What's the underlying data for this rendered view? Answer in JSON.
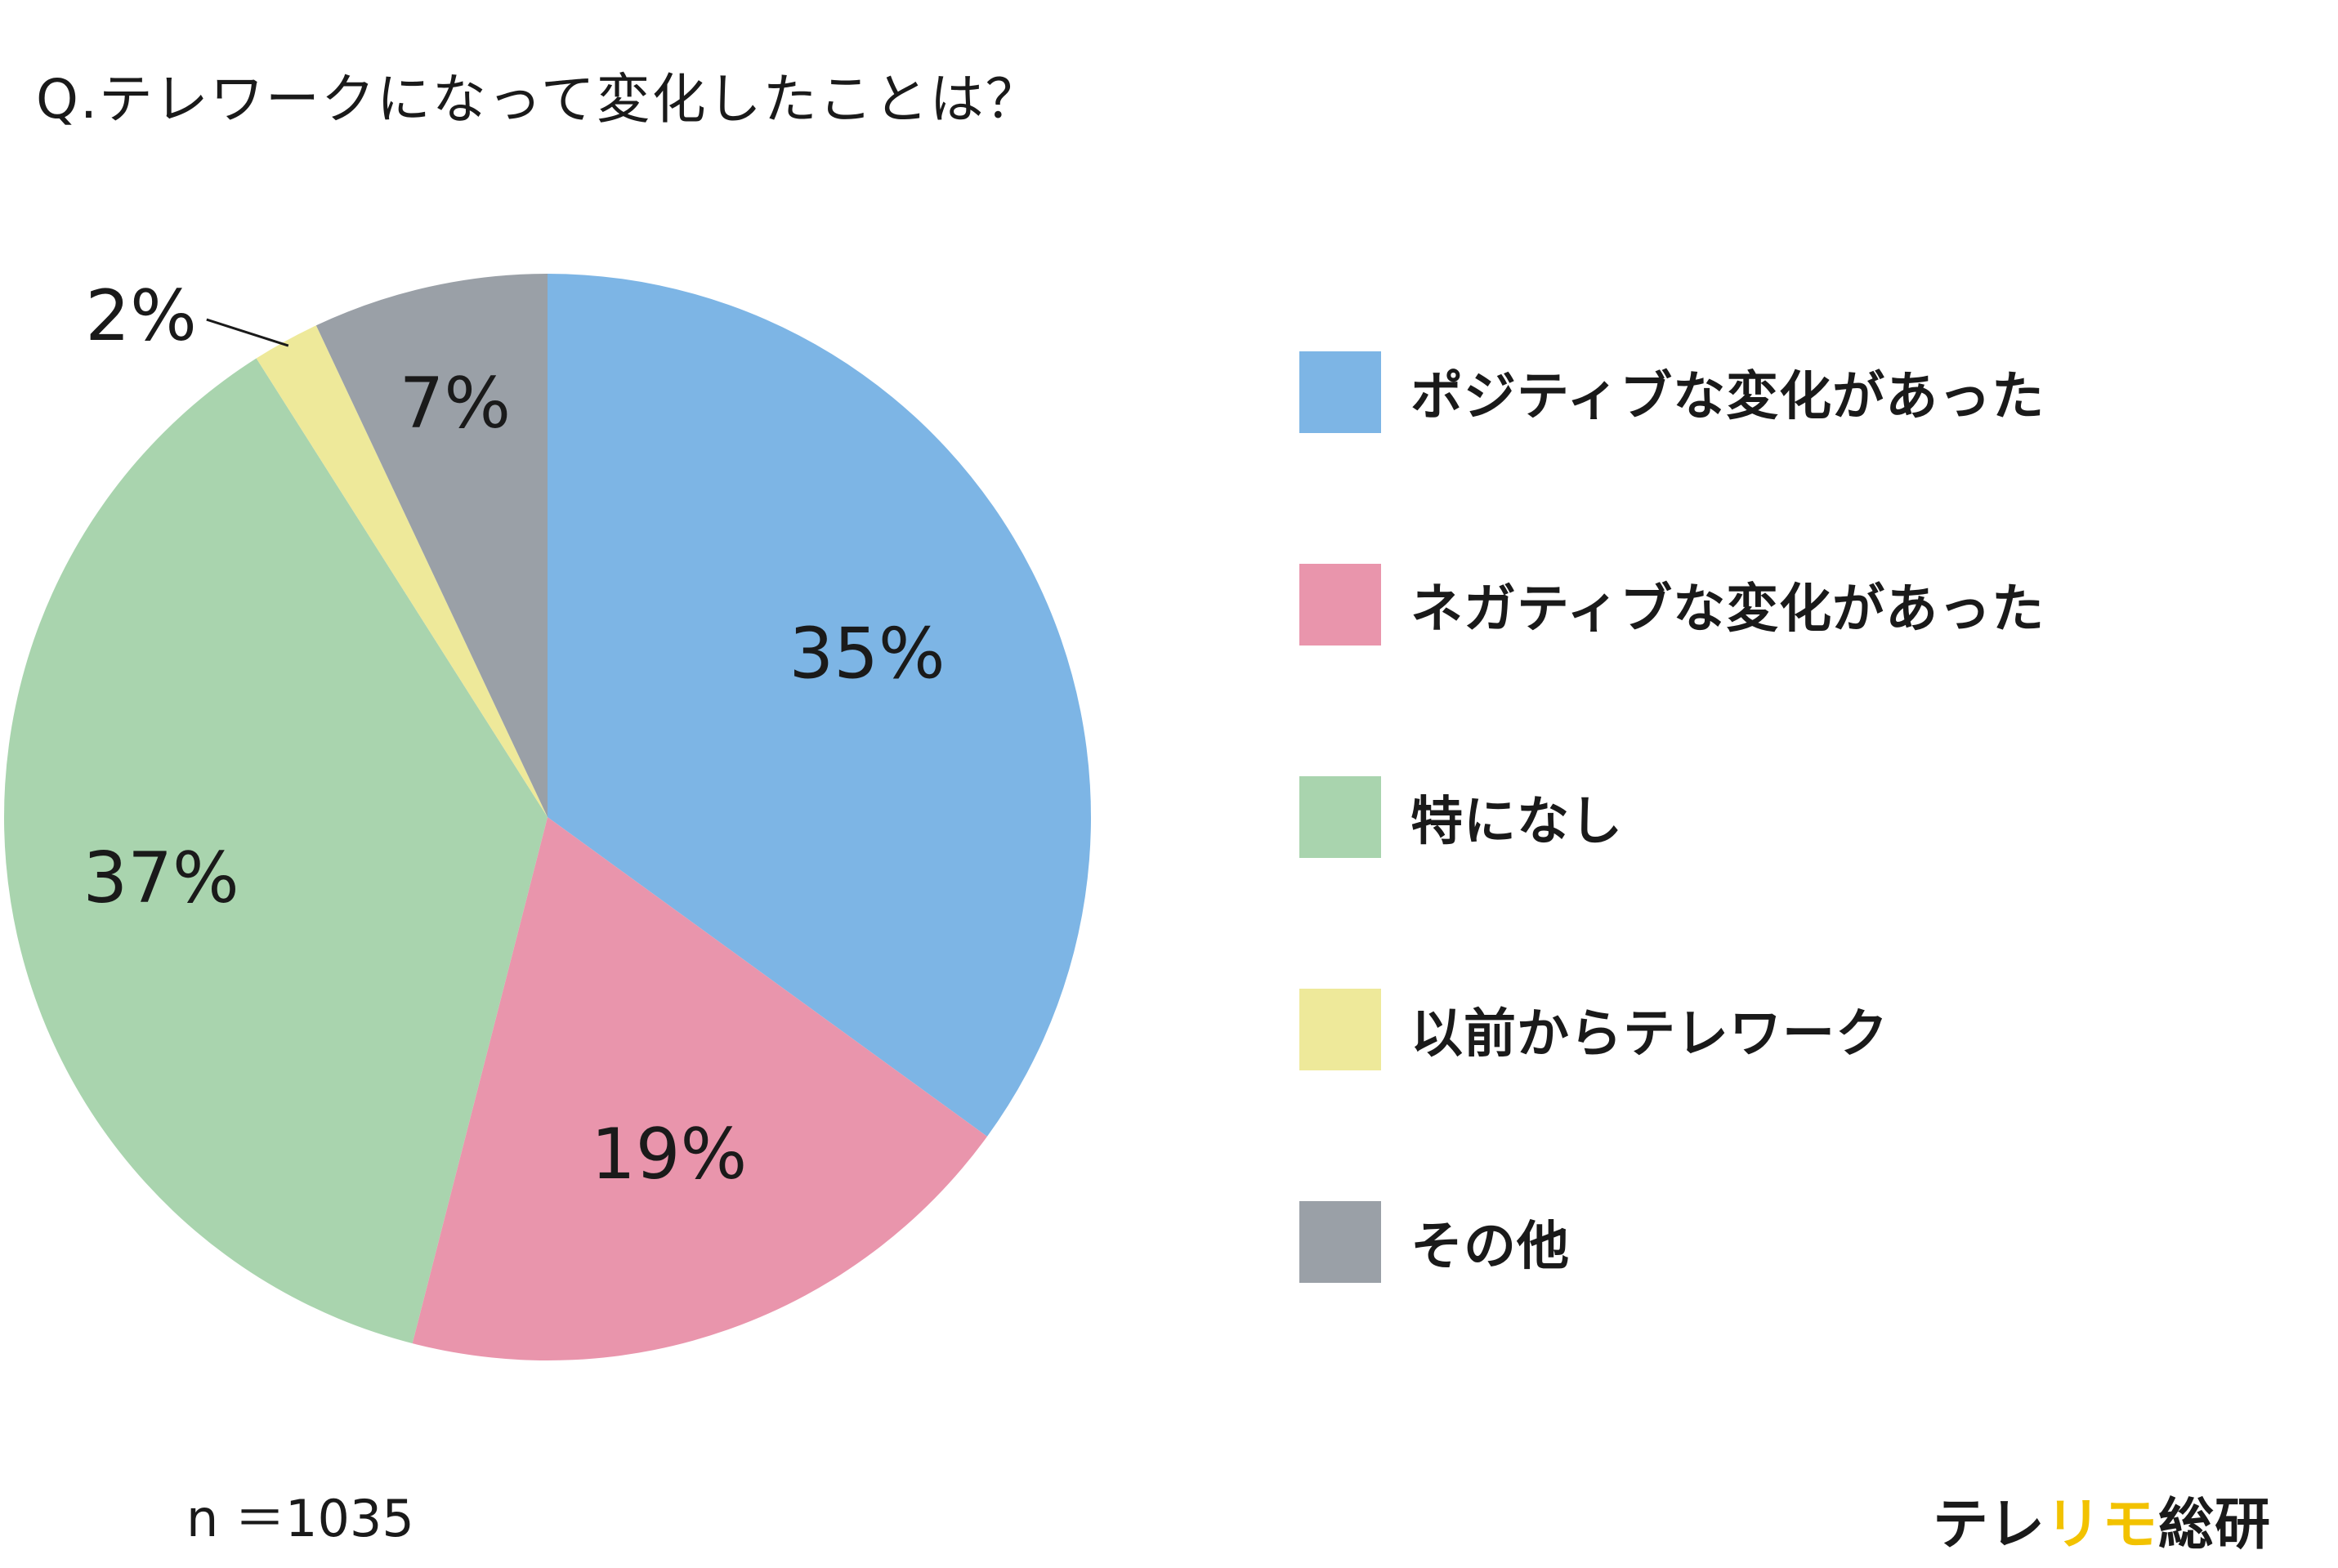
{
  "chart_data": {
    "type": "pie",
    "title": "Q.テレワークになって変化したことは？",
    "start_angle_deg": 0,
    "direction": "clockwise",
    "slices": [
      {
        "label": "ポジティブな変化があった",
        "value": 35,
        "value_label": "35%",
        "color": "#7db5e5"
      },
      {
        "label": "ネガティブな変化があった",
        "value": 19,
        "value_label": "19%",
        "color": "#e995ac"
      },
      {
        "label": "特になし",
        "value": 37,
        "value_label": "37%",
        "color": "#a9d4ae"
      },
      {
        "label": "以前からテレワーク",
        "value": 2,
        "value_label": "2%",
        "color": "#eee99a"
      },
      {
        "label": "その他",
        "value": 7,
        "value_label": "7%",
        "color": "#9aa0a7"
      }
    ],
    "legend_position": "right"
  },
  "footer": {
    "sample_size": "n ＝1035",
    "brand_part1": "テレ",
    "brand_part2": "リモ",
    "brand_part3": "総研"
  }
}
